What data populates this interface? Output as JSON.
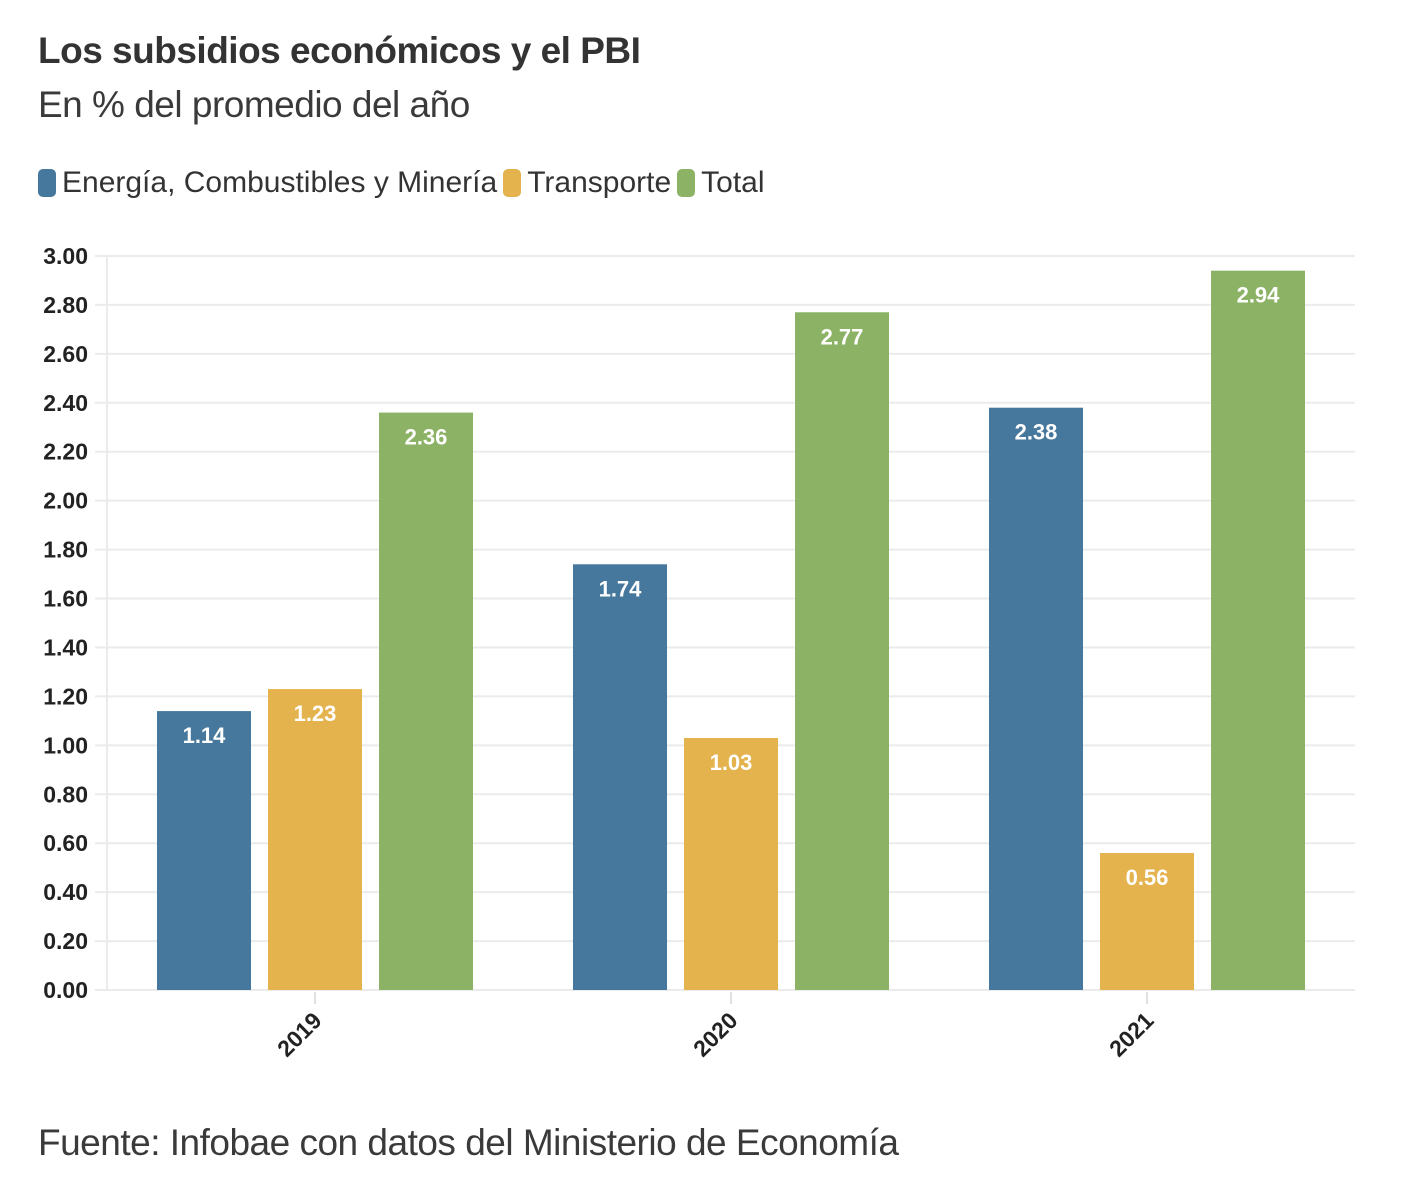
{
  "title": "Los subsidios económicos y el PBI",
  "subtitle": "En % del promedio del año",
  "legend": [
    {
      "label": "Energía, Combustibles y Minería",
      "color": "#46779c"
    },
    {
      "label": "Transporte",
      "color": "#e5b34e"
    },
    {
      "label": "Total",
      "color": "#8bb265"
    }
  ],
  "footer": "Fuente: Infobae con datos del Ministerio de Economía",
  "chart_data": {
    "type": "bar",
    "title": "Los subsidios económicos y el PBI",
    "subtitle": "En % del promedio del año",
    "xlabel": "",
    "ylabel": "",
    "categories": [
      "2019",
      "2020",
      "2021"
    ],
    "series": [
      {
        "name": "Energía, Combustibles y Minería",
        "color": "#46779c",
        "values": [
          1.14,
          1.74,
          2.38
        ]
      },
      {
        "name": "Transporte",
        "color": "#e5b34e",
        "values": [
          1.23,
          1.03,
          0.56
        ]
      },
      {
        "name": "Total",
        "color": "#8bb265",
        "values": [
          2.36,
          2.77,
          2.94
        ]
      }
    ],
    "data_labels": [
      [
        "1.14",
        "1.74",
        "2.38"
      ],
      [
        "1.23",
        "1.03",
        "0.56"
      ],
      [
        "2.36",
        "2.77",
        "2.94"
      ]
    ],
    "ylim": [
      0,
      3
    ],
    "yticks": [
      "0.00",
      "0.20",
      "0.40",
      "0.60",
      "0.80",
      "1.00",
      "1.20",
      "1.40",
      "1.60",
      "1.80",
      "2.00",
      "2.20",
      "2.40",
      "2.60",
      "2.80",
      "3.00"
    ],
    "ytick_values": [
      0,
      0.2,
      0.4,
      0.6,
      0.8,
      1.0,
      1.2,
      1.4,
      1.6,
      1.8,
      2.0,
      2.2,
      2.4,
      2.6,
      2.8,
      3.0
    ],
    "grid": true,
    "legend_position": "top-left",
    "xtick_rotation": "-45deg"
  }
}
